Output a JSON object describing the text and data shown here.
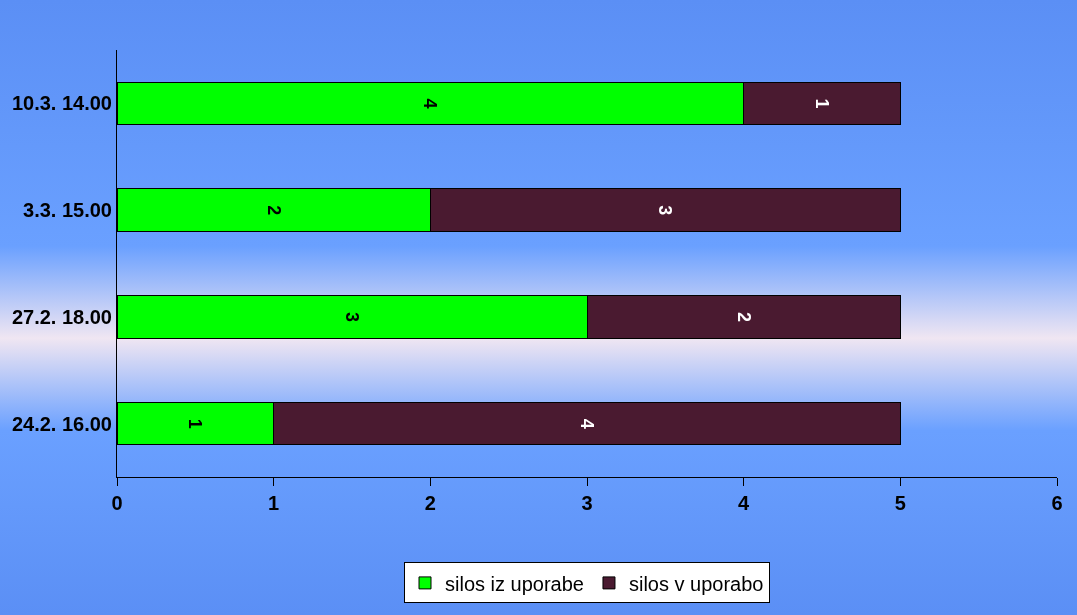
{
  "chart_data": {
    "type": "bar",
    "orientation": "horizontal",
    "stacked": true,
    "categories": [
      "10.3. 14.00",
      "3.3. 15.00",
      "27.2. 18.00",
      "24.2. 16.00"
    ],
    "series": [
      {
        "name": "silos iz uporabe",
        "color": "#00ff00",
        "values": [
          4,
          2,
          3,
          1
        ]
      },
      {
        "name": "silos v uporabo",
        "color": "#4a1a30",
        "values": [
          1,
          3,
          2,
          4
        ]
      }
    ],
    "xlim": [
      0,
      6
    ],
    "xticks": [
      0,
      1,
      2,
      3,
      4,
      5,
      6
    ],
    "grid": false,
    "legend": "bottom",
    "data_labels": true
  }
}
